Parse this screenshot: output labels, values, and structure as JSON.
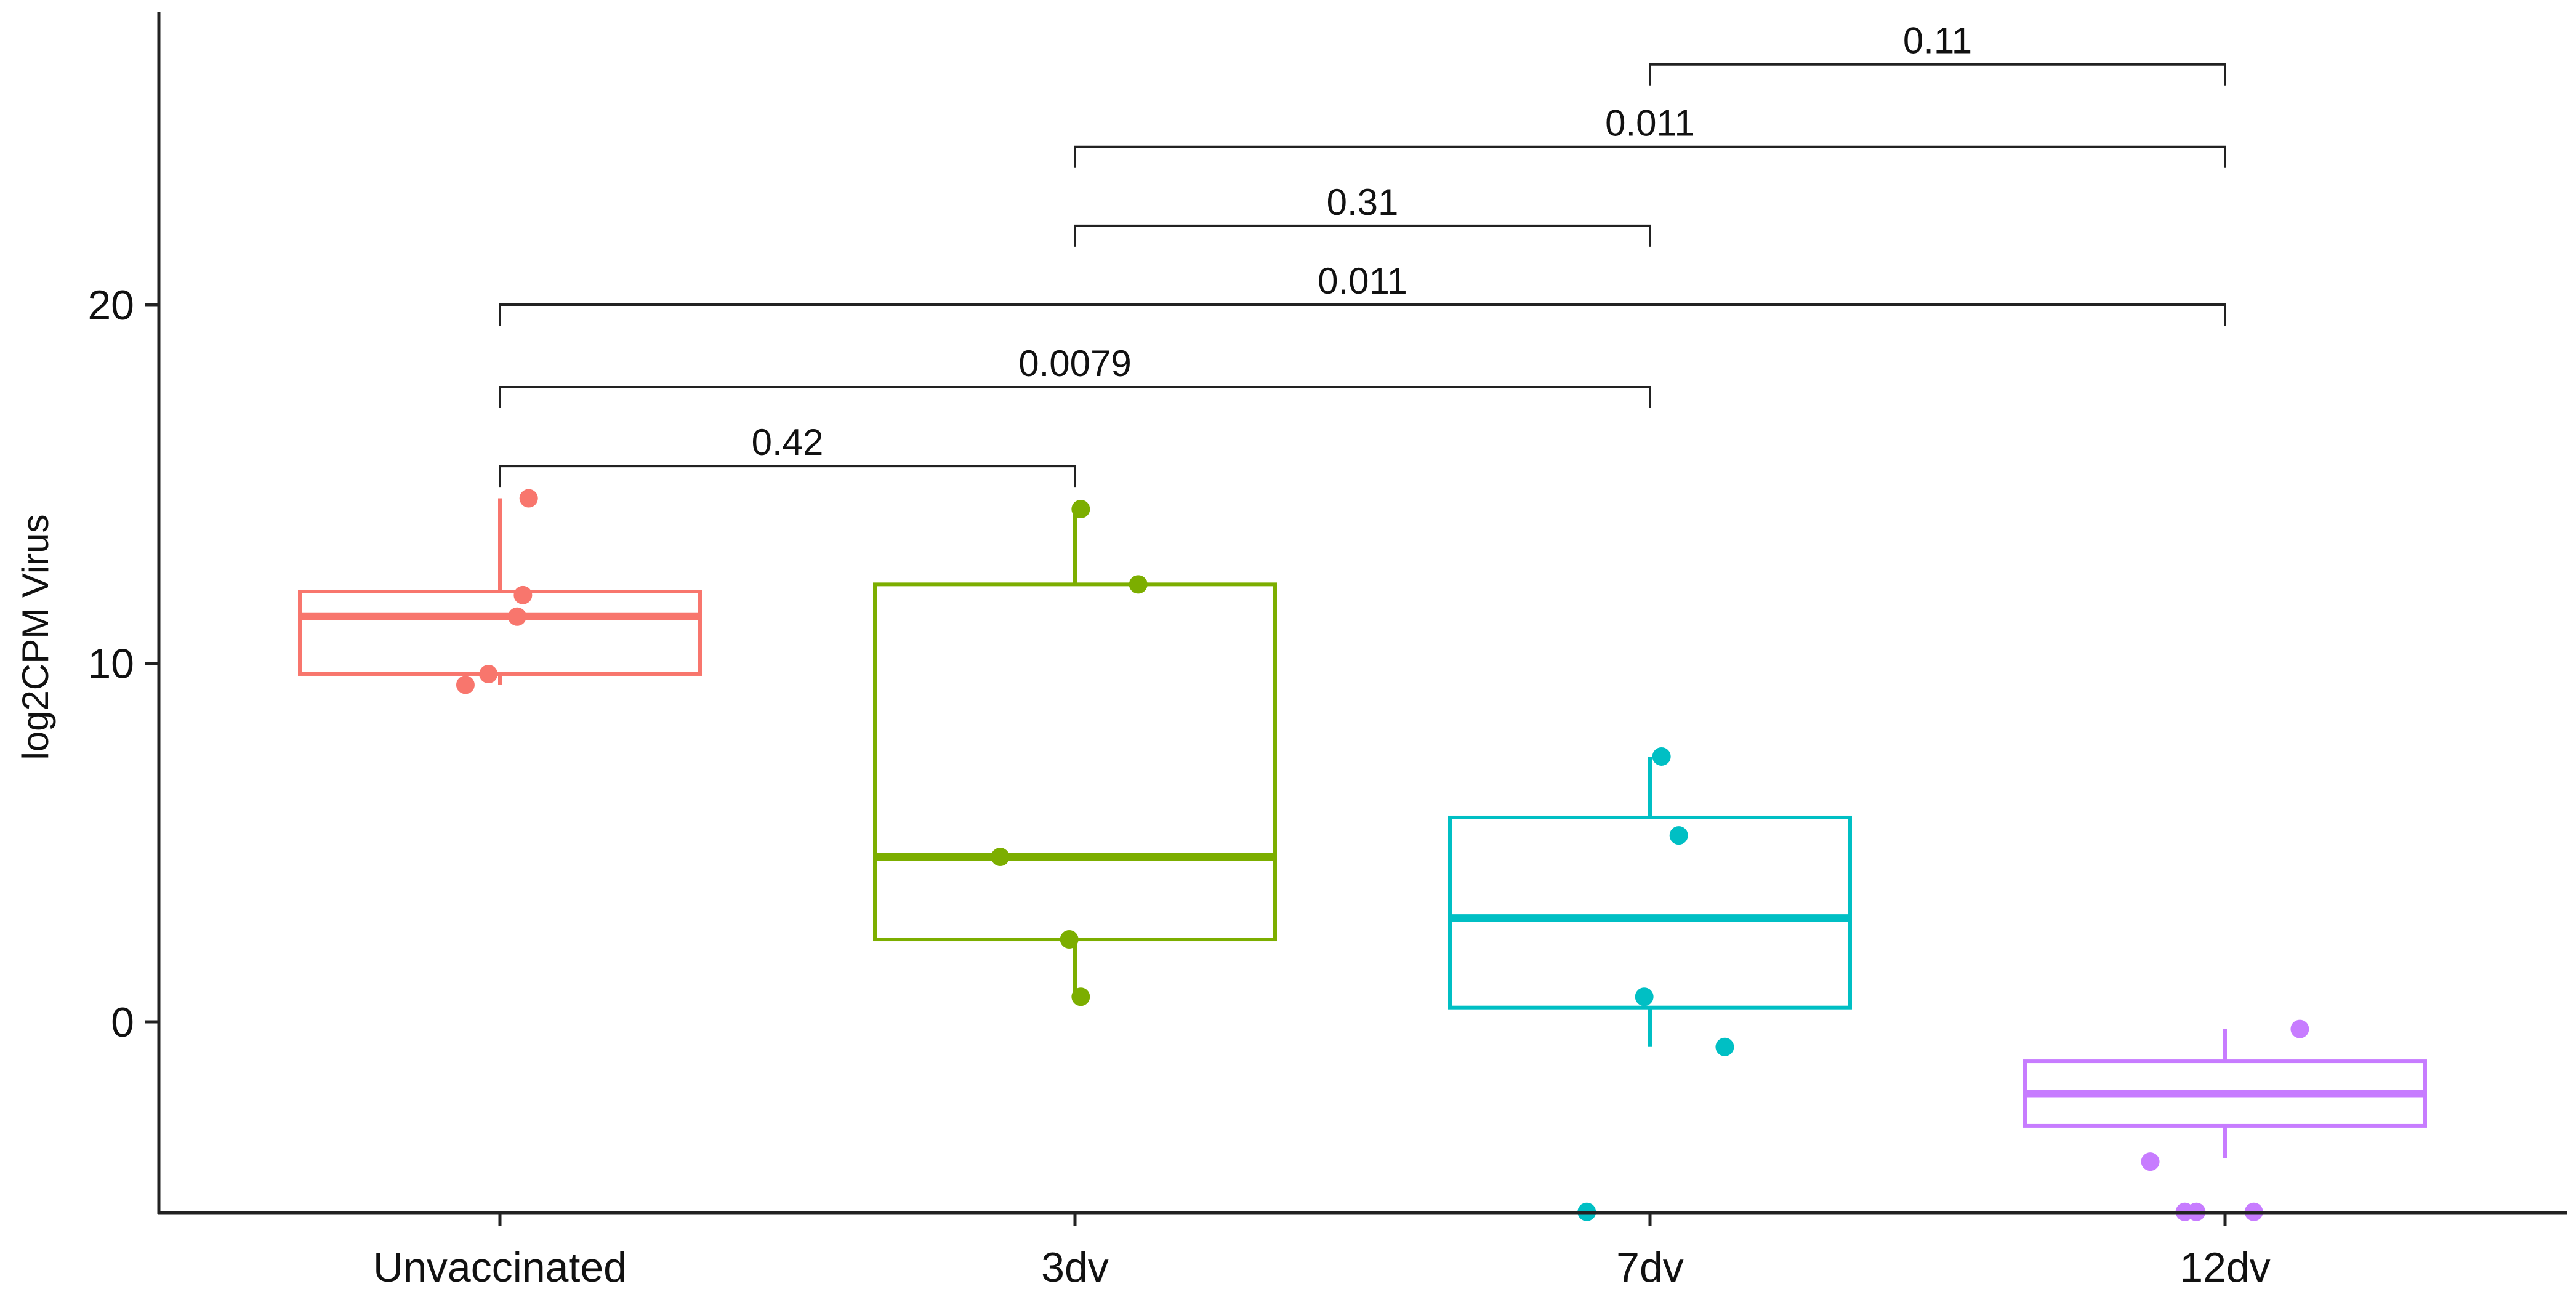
{
  "chart_data": {
    "type": "box",
    "title": "",
    "xlabel": "",
    "ylabel": "log2CPM Virus",
    "ylim": [
      -5.3,
      28
    ],
    "yticks": [
      0,
      10,
      20
    ],
    "grid": false,
    "legend": "none",
    "categories": [
      "Unvaccinated",
      "3dv",
      "7dv",
      "12dv"
    ],
    "groups": [
      {
        "name": "Unvaccinated",
        "color": "#F8766D",
        "whisker_low": 9.4,
        "q1": 9.7,
        "median": 11.3,
        "q3": 12.0,
        "whisker_high": 14.6,
        "points": [
          {
            "x_jitter": 0.05,
            "y": 14.6
          },
          {
            "x_jitter": 0.04,
            "y": 11.9
          },
          {
            "x_jitter": 0.03,
            "y": 11.3
          },
          {
            "x_jitter": -0.02,
            "y": 9.7
          },
          {
            "x_jitter": -0.06,
            "y": 9.4
          }
        ]
      },
      {
        "name": "3dv",
        "color": "#7CAE00",
        "whisker_low": 0.6,
        "q1": 2.3,
        "median": 4.6,
        "q3": 12.2,
        "whisker_high": 14.3,
        "points": [
          {
            "x_jitter": 0.01,
            "y": 14.3
          },
          {
            "x_jitter": 0.11,
            "y": 12.2
          },
          {
            "x_jitter": -0.13,
            "y": 4.6
          },
          {
            "x_jitter": -0.01,
            "y": 2.3
          },
          {
            "x_jitter": 0.01,
            "y": 0.7
          }
        ]
      },
      {
        "name": "7dv",
        "color": "#00BFC4",
        "whisker_low": -0.7,
        "q1": 0.4,
        "median": 2.9,
        "q3": 5.7,
        "whisker_high": 7.4,
        "points": [
          {
            "x_jitter": 0.02,
            "y": 7.4
          },
          {
            "x_jitter": 0.05,
            "y": 5.2
          },
          {
            "x_jitter": -0.01,
            "y": 0.7
          },
          {
            "x_jitter": 0.13,
            "y": -0.7
          },
          {
            "x_jitter": -0.11,
            "y": -5.3
          }
        ]
      },
      {
        "name": "12dv",
        "color": "#C77CFF",
        "whisker_low": -3.8,
        "q1": -2.9,
        "median": -2.0,
        "q3": -1.1,
        "whisker_high": -0.2,
        "points": [
          {
            "x_jitter": 0.13,
            "y": -0.2
          },
          {
            "x_jitter": -0.13,
            "y": -3.9
          },
          {
            "x_jitter": -0.07,
            "y": -5.3
          },
          {
            "x_jitter": -0.05,
            "y": -5.3
          },
          {
            "x_jitter": 0.05,
            "y": -5.3
          }
        ]
      }
    ],
    "comparisons": [
      {
        "from": "Unvaccinated",
        "to": "3dv",
        "p": "0.42",
        "y": 15.5
      },
      {
        "from": "Unvaccinated",
        "to": "7dv",
        "p": "0.0079",
        "y": 17.7
      },
      {
        "from": "Unvaccinated",
        "to": "12dv",
        "p": "0.011",
        "y": 20.0
      },
      {
        "from": "3dv",
        "to": "7dv",
        "p": "0.31",
        "y": 22.2
      },
      {
        "from": "3dv",
        "to": "12dv",
        "p": "0.011",
        "y": 24.4
      },
      {
        "from": "7dv",
        "to": "12dv",
        "p": "0.11",
        "y": 26.7
      }
    ]
  }
}
